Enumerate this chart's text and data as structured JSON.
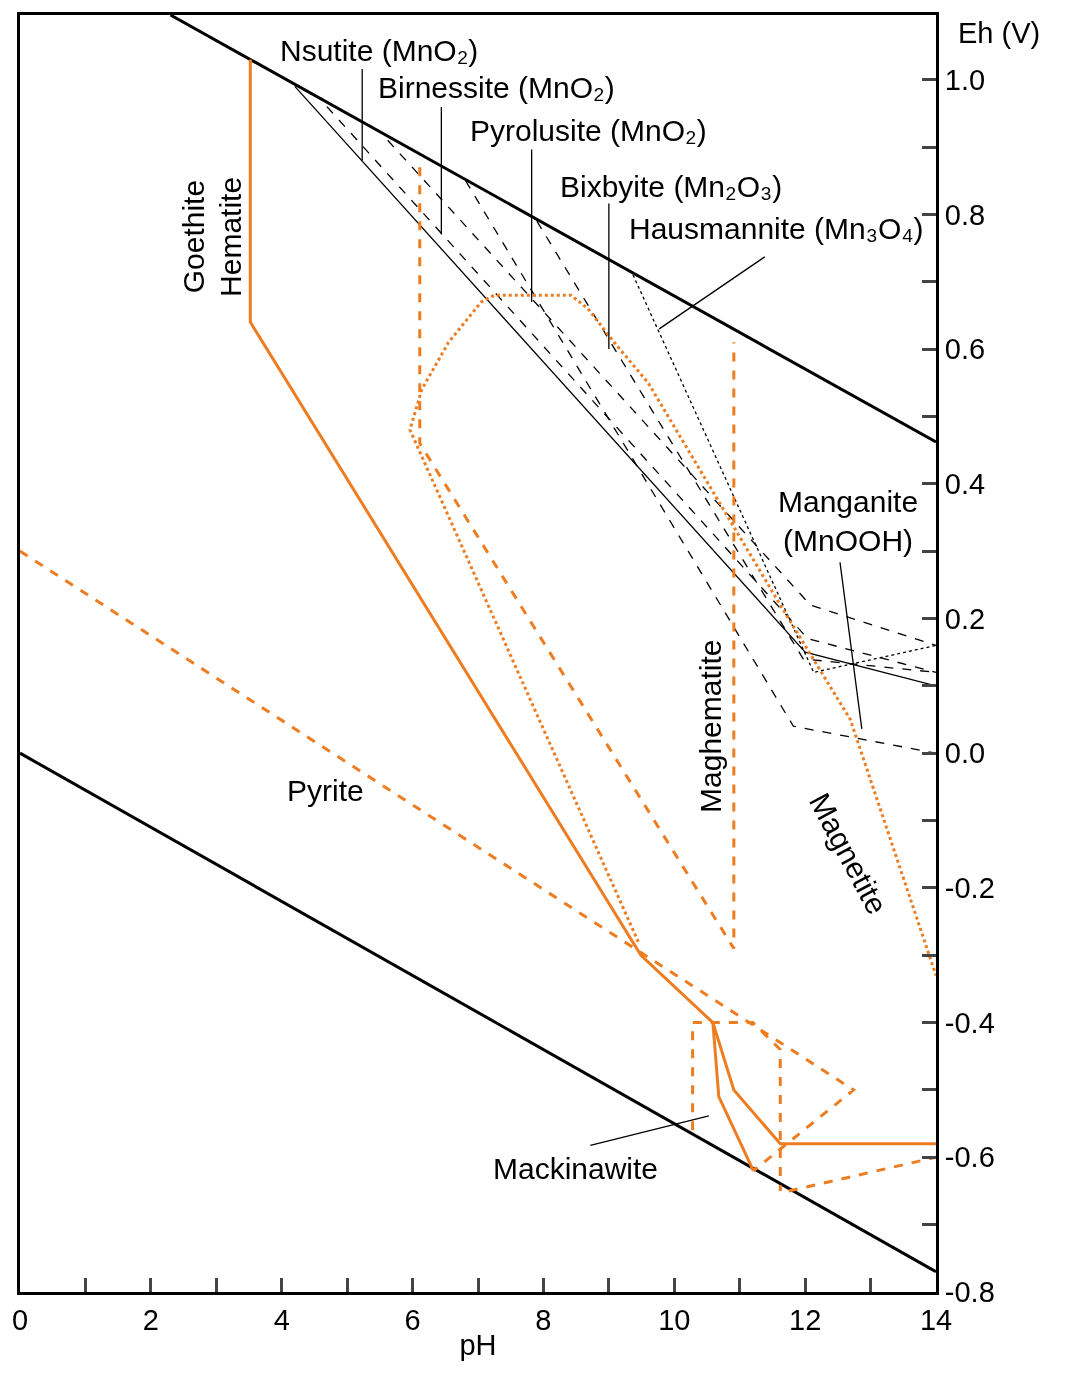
{
  "chart_data": {
    "type": "line",
    "xlabel": "pH",
    "ylabel": "Eh (V)",
    "xlim": [
      0,
      14
    ],
    "ylim": [
      -0.8,
      1.096
    ],
    "xticks": [
      0,
      {
        "value": 1,
        "label": null
      },
      2,
      {
        "value": 3,
        "label": null
      },
      4,
      {
        "value": 5,
        "label": null
      },
      6,
      {
        "value": 7,
        "label": null
      },
      8,
      {
        "value": 9,
        "label": null
      },
      10,
      {
        "value": 11,
        "label": null
      },
      12,
      {
        "value": 13,
        "label": null
      },
      14
    ],
    "yticks": [
      {
        "value": -0.8,
        "label": "-0.8"
      },
      {
        "value": -0.7,
        "label": null
      },
      {
        "value": -0.6,
        "label": "-0.6"
      },
      {
        "value": -0.5,
        "label": null
      },
      {
        "value": -0.4,
        "label": "-0.4"
      },
      {
        "value": -0.3,
        "label": null
      },
      {
        "value": -0.2,
        "label": "-0.2"
      },
      {
        "value": -0.1,
        "label": null
      },
      {
        "value": 0,
        "label": "0.0"
      },
      {
        "value": 0.1,
        "label": null
      },
      {
        "value": 0.2,
        "label": "0.2"
      },
      {
        "value": 0.3,
        "label": null
      },
      {
        "value": 0.4,
        "label": "0.4"
      },
      {
        "value": 0.5,
        "label": null
      },
      {
        "value": 0.6,
        "label": "0.6"
      },
      {
        "value": 0.7,
        "label": null
      },
      {
        "value": 0.8,
        "label": "0.8"
      },
      {
        "value": 0.9,
        "label": null
      },
      {
        "value": 1.0,
        "label": "1.0"
      }
    ],
    "series": [
      {
        "color": "#000000",
        "line_style": "solid",
        "x": [
          2.3,
          14
        ],
        "values": [
          1.096,
          0.462
        ]
      },
      {
        "color": "#000000",
        "line_style": "solid",
        "x": [
          0,
          14
        ],
        "values": [
          0.0,
          -0.77
        ]
      },
      {
        "color": "#000000",
        "line_style": "solid",
        "x": [
          4.2,
          12.0,
          14
        ],
        "values": [
          0.99,
          0.15,
          0.1
        ]
      },
      {
        "color": "#000000",
        "line_style": "dashed",
        "x": [
          4.69,
          12.04,
          14
        ],
        "values": [
          0.96,
          0.17,
          0.12
        ]
      },
      {
        "color": "#000000",
        "line_style": "dashed",
        "x": [
          5.62,
          12.08,
          14
        ],
        "values": [
          0.91,
          0.22,
          0.16
        ]
      },
      {
        "color": "#000000",
        "line_style": "dashed",
        "x": [
          7.9,
          11.97,
          14
        ],
        "values": [
          0.79,
          0.14,
          0.12
        ]
      },
      {
        "color": "#000000",
        "line_style": "dotted",
        "x": [
          9.37,
          12.13,
          14
        ],
        "values": [
          0.71,
          0.12,
          0.16
        ]
      },
      {
        "color": "#000000",
        "line_style": "dashed",
        "x": [
          6.81,
          11.82,
          14
        ],
        "values": [
          0.85,
          0.04,
          0.0
        ]
      },
      {
        "color": "#ee7d22",
        "line_style": "solid",
        "x": [
          3.52,
          3.52,
          9.49,
          10.59,
          10.91,
          11.62,
          14
        ],
        "values": [
          1.03,
          0.64,
          -0.3,
          -0.4,
          -0.5,
          -0.58,
          -0.58
        ]
      },
      {
        "color": "#ee7d22",
        "line_style": "solid",
        "x": [
          10.59,
          10.68,
          11.21
        ],
        "values": [
          -0.4,
          -0.51,
          -0.62
        ]
      },
      {
        "color": "#ee7d22",
        "line_style": "dashed",
        "x": [
          0,
          12.74,
          11.21
        ],
        "values": [
          0.3,
          -0.5,
          -0.62
        ]
      },
      {
        "color": "#ee7d22",
        "line_style": "dashed",
        "x": [
          11.75,
          14
        ],
        "values": [
          -0.65,
          -0.6
        ]
      },
      {
        "color": "#ee7d22",
        "line_style": "dashed",
        "x": [
          6.11,
          6.11,
          10.91,
          10.91
        ],
        "values": [
          0.87,
          0.46,
          -0.29,
          0.61
        ]
      },
      {
        "color": "#ee7d22",
        "line_style": "dashed",
        "x": [
          10.28,
          10.28,
          11.2,
          11.62,
          11.62
        ],
        "values": [
          -0.56,
          -0.4,
          -0.4,
          -0.44,
          -0.65
        ]
      },
      {
        "color": "#ee7d22",
        "line_style": "dotted",
        "x": [
          9.45,
          5.96,
          6.14,
          6.55,
          7.05,
          7.25,
          8.42,
          8.68,
          9.08,
          9.6,
          11.62,
          12.69,
          14
        ],
        "values": [
          -0.28,
          0.48,
          0.54,
          0.61,
          0.67,
          0.68,
          0.68,
          0.66,
          0.61,
          0.55,
          0.22,
          0.05,
          -0.33
        ]
      }
    ],
    "annotations": [
      {
        "text": "Nsutite (MnO₂)",
        "x": 5.23,
        "y": 0.88
      },
      {
        "text": "Birnessite (MnO₂)",
        "x": 6.44,
        "y": 0.77
      },
      {
        "text": "Pyrolusite (MnO₂)",
        "x": 7.82,
        "y": 0.67
      },
      {
        "text": "Bixbyite (Mn₂O₃)",
        "x": 9.0,
        "y": 0.6
      },
      {
        "text": "Hausmannite (Mn₃O₄)",
        "x": 9.77,
        "y": 0.63
      },
      "Manganite\n(MnOOH)",
      "Mackinawite",
      "Pyrite",
      "Goethite",
      "Hematite",
      "Maghematite",
      "Magnetite"
    ]
  }
}
